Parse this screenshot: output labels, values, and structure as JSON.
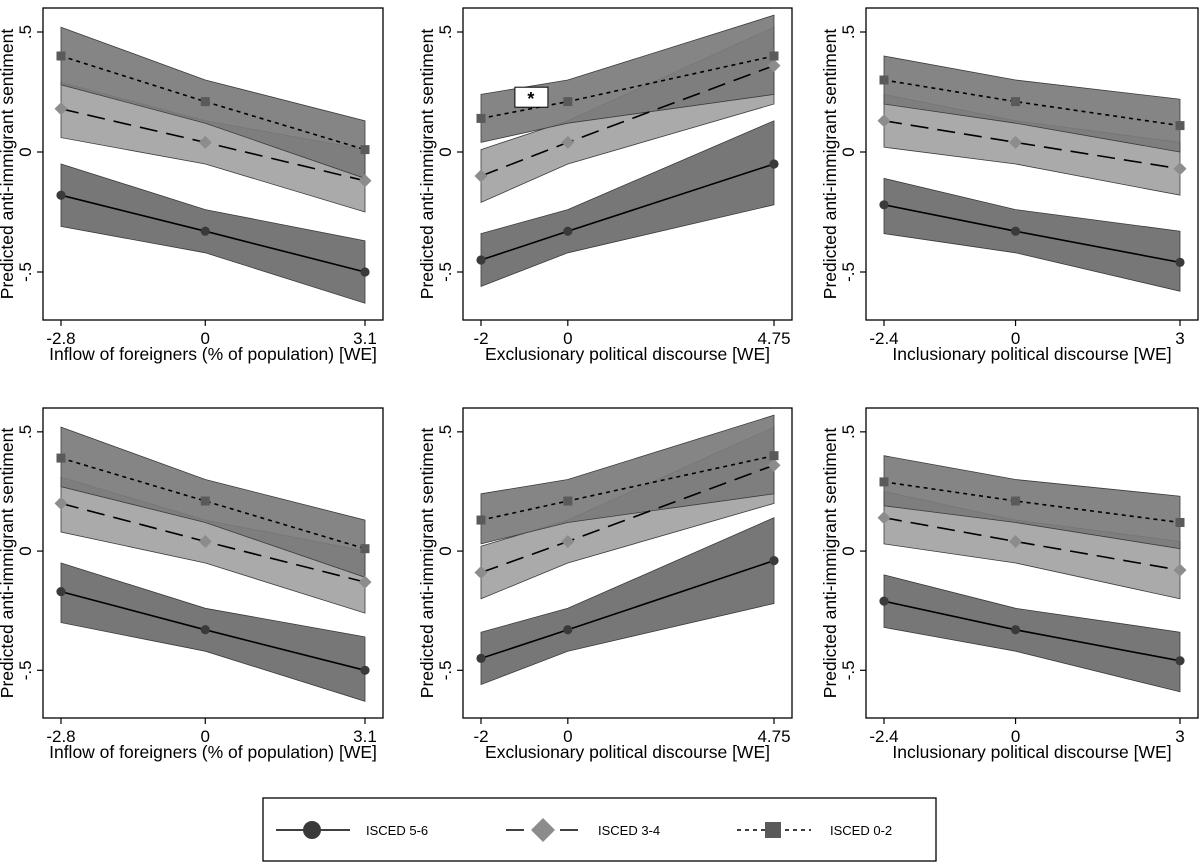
{
  "chart_data": [
    {
      "type": "line",
      "xlabel": "Inflow of foreigners (% of population) [WE]",
      "ylabel": "Predicted anti-immigrant sentiment",
      "xlim": [
        -2.8,
        3.1
      ],
      "ylim": [
        -0.7,
        0.6
      ],
      "xticks": [
        -2.8,
        0,
        3.1
      ],
      "xtick_labels": [
        "-2.8",
        "0",
        "3.1"
      ],
      "yticks": [
        -0.5,
        0,
        0.5
      ],
      "ytick_labels": [
        "-.5",
        "0",
        ".5"
      ],
      "x": [
        -2.8,
        0,
        3.1
      ],
      "series": [
        {
          "name": "ISCED 5-6",
          "values": [
            -0.18,
            -0.33,
            -0.5
          ],
          "ci_low": [
            -0.31,
            -0.42,
            -0.63
          ],
          "ci_high": [
            -0.05,
            -0.24,
            -0.37
          ]
        },
        {
          "name": "ISCED 3-4",
          "values": [
            0.18,
            0.04,
            -0.12
          ],
          "ci_low": [
            0.06,
            -0.05,
            -0.25
          ],
          "ci_high": [
            0.29,
            0.13,
            0.01
          ]
        },
        {
          "name": "ISCED 0-2",
          "values": [
            0.4,
            0.21,
            0.01
          ],
          "ci_low": [
            0.28,
            0.12,
            -0.11
          ],
          "ci_high": [
            0.52,
            0.3,
            0.13
          ]
        }
      ]
    },
    {
      "type": "line",
      "xlabel": "Exclusionary political discourse [WE]",
      "ylabel": "Predicted anti-immigrant sentiment",
      "xlim": [
        -2,
        4.75
      ],
      "ylim": [
        -0.7,
        0.6
      ],
      "xticks": [
        -2,
        0,
        4.75
      ],
      "xtick_labels": [
        "-2",
        "0",
        "4.75"
      ],
      "yticks": [
        -0.5,
        0,
        0.5
      ],
      "ytick_labels": [
        "-.5",
        "0",
        ".5"
      ],
      "x": [
        -2,
        0,
        4.75
      ],
      "series": [
        {
          "name": "ISCED 5-6",
          "values": [
            -0.45,
            -0.33,
            -0.05
          ],
          "ci_low": [
            -0.56,
            -0.42,
            -0.22
          ],
          "ci_high": [
            -0.34,
            -0.24,
            0.13
          ]
        },
        {
          "name": "ISCED 3-4",
          "values": [
            -0.1,
            0.04,
            0.36
          ],
          "ci_low": [
            -0.21,
            -0.05,
            0.2
          ],
          "ci_high": [
            0.01,
            0.13,
            0.52
          ]
        },
        {
          "name": "ISCED 0-2",
          "values": [
            0.14,
            0.21,
            0.4
          ],
          "ci_low": [
            0.04,
            0.12,
            0.24
          ],
          "ci_high": [
            0.24,
            0.3,
            0.57
          ]
        }
      ],
      "annotation": "*"
    },
    {
      "type": "line",
      "xlabel": "Inclusionary political discourse [WE]",
      "ylabel": "Predicted anti-immigrant sentiment",
      "xlim": [
        -2.4,
        3
      ],
      "ylim": [
        -0.7,
        0.6
      ],
      "xticks": [
        -2.4,
        0,
        3
      ],
      "xtick_labels": [
        "-2.4",
        "0",
        "3"
      ],
      "yticks": [
        -0.5,
        0,
        0.5
      ],
      "ytick_labels": [
        "-.5",
        "0",
        ".5"
      ],
      "x": [
        -2.4,
        0,
        3
      ],
      "series": [
        {
          "name": "ISCED 5-6",
          "values": [
            -0.22,
            -0.33,
            -0.46
          ],
          "ci_low": [
            -0.34,
            -0.42,
            -0.58
          ],
          "ci_high": [
            -0.11,
            -0.24,
            -0.33
          ]
        },
        {
          "name": "ISCED 3-4",
          "values": [
            0.13,
            0.04,
            -0.07
          ],
          "ci_low": [
            0.02,
            -0.05,
            -0.18
          ],
          "ci_high": [
            0.24,
            0.13,
            0.04
          ]
        },
        {
          "name": "ISCED 0-2",
          "values": [
            0.3,
            0.21,
            0.11
          ],
          "ci_low": [
            0.2,
            0.12,
            0.0
          ],
          "ci_high": [
            0.4,
            0.3,
            0.22
          ]
        }
      ]
    },
    {
      "type": "line",
      "xlabel": "Inflow of foreigners (% of population) [WE]",
      "ylabel": "Predicted anti-immigrant sentiment",
      "xlim": [
        -2.8,
        3.1
      ],
      "ylim": [
        -0.7,
        0.6
      ],
      "xticks": [
        -2.8,
        0,
        3.1
      ],
      "xtick_labels": [
        "-2.8",
        "0",
        "3.1"
      ],
      "yticks": [
        -0.5,
        0,
        0.5
      ],
      "ytick_labels": [
        "-.5",
        "0",
        ".5"
      ],
      "x": [
        -2.8,
        0,
        3.1
      ],
      "series": [
        {
          "name": "ISCED 5-6",
          "values": [
            -0.17,
            -0.33,
            -0.5
          ],
          "ci_low": [
            -0.3,
            -0.42,
            -0.63
          ],
          "ci_high": [
            -0.05,
            -0.24,
            -0.36
          ]
        },
        {
          "name": "ISCED 3-4",
          "values": [
            0.2,
            0.04,
            -0.13
          ],
          "ci_low": [
            0.08,
            -0.05,
            -0.26
          ],
          "ci_high": [
            0.31,
            0.13,
            0.0
          ]
        },
        {
          "name": "ISCED 0-2",
          "values": [
            0.39,
            0.21,
            0.01
          ],
          "ci_low": [
            0.27,
            0.12,
            -0.11
          ],
          "ci_high": [
            0.52,
            0.3,
            0.13
          ]
        }
      ]
    },
    {
      "type": "line",
      "xlabel": "Exclusionary political discourse [WE]",
      "ylabel": "Predicted anti-immigrant sentiment",
      "xlim": [
        -2,
        4.75
      ],
      "ylim": [
        -0.7,
        0.6
      ],
      "xticks": [
        -2,
        0,
        4.75
      ],
      "xtick_labels": [
        "-2",
        "0",
        "4.75"
      ],
      "yticks": [
        -0.5,
        0,
        0.5
      ],
      "ytick_labels": [
        "-.5",
        "0",
        ".5"
      ],
      "x": [
        -2,
        0,
        4.75
      ],
      "series": [
        {
          "name": "ISCED 5-6",
          "values": [
            -0.45,
            -0.33,
            -0.04
          ],
          "ci_low": [
            -0.56,
            -0.42,
            -0.22
          ],
          "ci_high": [
            -0.34,
            -0.24,
            0.14
          ]
        },
        {
          "name": "ISCED 3-4",
          "values": [
            -0.09,
            0.04,
            0.36
          ],
          "ci_low": [
            -0.2,
            -0.05,
            0.2
          ],
          "ci_high": [
            0.02,
            0.13,
            0.52
          ]
        },
        {
          "name": "ISCED 0-2",
          "values": [
            0.13,
            0.21,
            0.4
          ],
          "ci_low": [
            0.03,
            0.12,
            0.24
          ],
          "ci_high": [
            0.24,
            0.3,
            0.57
          ]
        }
      ]
    },
    {
      "type": "line",
      "xlabel": "Inclusionary political discourse [WE]",
      "ylabel": "Predicted anti-immigrant sentiment",
      "xlim": [
        -2.4,
        3
      ],
      "ylim": [
        -0.7,
        0.6
      ],
      "xticks": [
        -2.4,
        0,
        3
      ],
      "xtick_labels": [
        "-2.4",
        "0",
        "3"
      ],
      "yticks": [
        -0.5,
        0,
        0.5
      ],
      "ytick_labels": [
        "-.5",
        "0",
        ".5"
      ],
      "x": [
        -2.4,
        0,
        3
      ],
      "series": [
        {
          "name": "ISCED 5-6",
          "values": [
            -0.21,
            -0.33,
            -0.46
          ],
          "ci_low": [
            -0.32,
            -0.42,
            -0.59
          ],
          "ci_high": [
            -0.1,
            -0.24,
            -0.34
          ]
        },
        {
          "name": "ISCED 3-4",
          "values": [
            0.14,
            0.04,
            -0.08
          ],
          "ci_low": [
            0.03,
            -0.05,
            -0.2
          ],
          "ci_high": [
            0.25,
            0.13,
            0.04
          ]
        },
        {
          "name": "ISCED 0-2",
          "values": [
            0.29,
            0.21,
            0.12
          ],
          "ci_low": [
            0.19,
            0.12,
            0.01
          ],
          "ci_high": [
            0.4,
            0.3,
            0.23
          ]
        }
      ]
    }
  ],
  "legend": {
    "placement": "bottom-center",
    "items": [
      {
        "label": "ISCED 5-6",
        "marker": "circle",
        "line": "solid"
      },
      {
        "label": "ISCED 3-4",
        "marker": "diamond",
        "line": "dashed"
      },
      {
        "label": "ISCED 0-2",
        "marker": "square",
        "line": "dotted"
      }
    ]
  },
  "style": {
    "band_colors": [
      "#6b6b6b",
      "#a3a3a3",
      "#7b7b7b"
    ],
    "marker_colors": [
      "#3a3a3a",
      "#8c8c8c",
      "#5a5a5a"
    ],
    "line_color": "#000000"
  }
}
